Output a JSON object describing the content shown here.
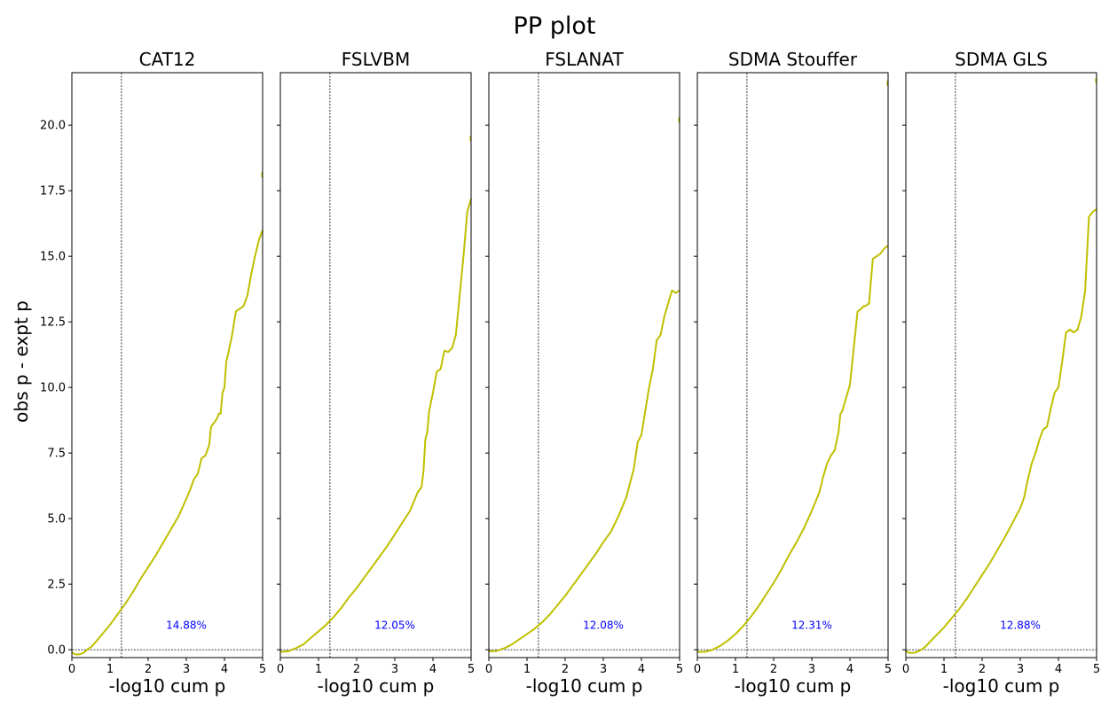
{
  "figure": {
    "title": "PP plot",
    "ylabel": "obs p - expt p",
    "line_color": "#bfbf00",
    "annotation_color": "#0000ff"
  },
  "chart_data": [
    {
      "type": "line",
      "title": "CAT12",
      "xlabel": "-log10 cum p",
      "xlim": [
        0,
        5
      ],
      "ylim": [
        -0.3,
        22
      ],
      "x_ticks": [
        "0",
        "1",
        "2",
        "3",
        "4",
        "5"
      ],
      "y_ticks": [
        "0.0",
        "2.5",
        "5.0",
        "7.5",
        "10.0",
        "12.5",
        "15.0",
        "17.5",
        "20.0"
      ],
      "vline_x": 1.3,
      "hline_y": 0,
      "annotation": {
        "text": "14.88%",
        "x": 3.0,
        "y": 0.8
      },
      "x": [
        0.0,
        0.1,
        0.2,
        0.3,
        0.4,
        0.5,
        0.6,
        0.8,
        1.0,
        1.2,
        1.4,
        1.6,
        1.8,
        2.0,
        2.2,
        2.4,
        2.6,
        2.8,
        3.0,
        3.1,
        3.2,
        3.3,
        3.4,
        3.5,
        3.6,
        3.65,
        3.7,
        3.75,
        3.8,
        3.85,
        3.9,
        3.95,
        4.0,
        4.05,
        4.1,
        4.2,
        4.3,
        4.4,
        4.5,
        4.6,
        4.7,
        4.8,
        4.9,
        5.0
      ],
      "y": [
        -0.1,
        -0.18,
        -0.18,
        -0.12,
        0.0,
        0.1,
        0.25,
        0.6,
        0.95,
        1.35,
        1.75,
        2.2,
        2.7,
        3.15,
        3.6,
        4.1,
        4.6,
        5.1,
        5.75,
        6.1,
        6.5,
        6.7,
        7.3,
        7.4,
        7.8,
        8.5,
        8.6,
        8.7,
        8.8,
        9.0,
        9.0,
        9.8,
        10.0,
        11.0,
        11.3,
        12.0,
        12.9,
        13.0,
        13.1,
        13.5,
        14.3,
        15.0,
        15.6,
        16.0
      ],
      "tail_point": {
        "x": 5.0,
        "y": 18.1
      }
    },
    {
      "type": "line",
      "title": "FSLVBM",
      "xlabel": "-log10 cum p",
      "xlim": [
        0,
        5
      ],
      "ylim": [
        -0.3,
        22
      ],
      "x_ticks": [
        "0",
        "1",
        "2",
        "3",
        "4",
        "5"
      ],
      "y_ticks": [
        "0.0",
        "2.5",
        "5.0",
        "7.5",
        "10.0",
        "12.5",
        "15.0",
        "17.5",
        "20.0"
      ],
      "vline_x": 1.3,
      "hline_y": 0,
      "annotation": {
        "text": "12.05%",
        "x": 3.0,
        "y": 0.8
      },
      "x": [
        0.0,
        0.2,
        0.4,
        0.6,
        0.8,
        1.0,
        1.2,
        1.4,
        1.6,
        1.8,
        2.0,
        2.2,
        2.4,
        2.6,
        2.8,
        3.0,
        3.2,
        3.4,
        3.6,
        3.7,
        3.75,
        3.8,
        3.85,
        3.9,
        4.0,
        4.1,
        4.2,
        4.3,
        4.4,
        4.5,
        4.6,
        4.7,
        4.8,
        4.9,
        5.0
      ],
      "y": [
        -0.08,
        -0.06,
        0.05,
        0.2,
        0.45,
        0.7,
        0.95,
        1.25,
        1.6,
        2.0,
        2.35,
        2.75,
        3.15,
        3.55,
        3.95,
        4.4,
        4.85,
        5.3,
        6.0,
        6.2,
        6.8,
        8.0,
        8.3,
        9.1,
        9.8,
        10.6,
        10.7,
        11.4,
        11.35,
        11.5,
        12.0,
        13.5,
        15.0,
        16.7,
        17.2
      ],
      "tail_point": {
        "x": 5.0,
        "y": 19.5
      }
    },
    {
      "type": "line",
      "title": "FSLANAT",
      "xlabel": "-log10 cum p",
      "xlim": [
        0,
        5
      ],
      "ylim": [
        -0.3,
        22
      ],
      "x_ticks": [
        "0",
        "1",
        "2",
        "3",
        "4",
        "5"
      ],
      "y_ticks": [
        "0.0",
        "2.5",
        "5.0",
        "7.5",
        "10.0",
        "12.5",
        "15.0",
        "17.5",
        "20.0"
      ],
      "vline_x": 1.3,
      "hline_y": 0,
      "annotation": {
        "text": "12.08%",
        "x": 3.0,
        "y": 0.8
      },
      "x": [
        0.0,
        0.2,
        0.4,
        0.6,
        0.8,
        1.0,
        1.2,
        1.4,
        1.6,
        1.8,
        2.0,
        2.2,
        2.4,
        2.6,
        2.8,
        3.0,
        3.2,
        3.4,
        3.6,
        3.8,
        3.9,
        4.0,
        4.1,
        4.2,
        4.3,
        4.4,
        4.5,
        4.6,
        4.7,
        4.8,
        4.9,
        5.0
      ],
      "y": [
        -0.06,
        -0.05,
        0.05,
        0.2,
        0.4,
        0.6,
        0.8,
        1.05,
        1.35,
        1.7,
        2.05,
        2.45,
        2.85,
        3.25,
        3.65,
        4.1,
        4.5,
        5.1,
        5.8,
        6.9,
        7.9,
        8.2,
        9.1,
        10.0,
        10.7,
        11.8,
        12.0,
        12.7,
        13.2,
        13.7,
        13.6,
        13.7
      ],
      "tail_point": {
        "x": 5.0,
        "y": 20.2
      }
    },
    {
      "type": "line",
      "title": "SDMA Stouffer",
      "xlabel": "-log10 cum p",
      "xlim": [
        0,
        5
      ],
      "ylim": [
        -0.3,
        22
      ],
      "x_ticks": [
        "0",
        "1",
        "2",
        "3",
        "4",
        "5"
      ],
      "y_ticks": [
        "0.0",
        "2.5",
        "5.0",
        "7.5",
        "10.0",
        "12.5",
        "15.0",
        "17.5",
        "20.0"
      ],
      "vline_x": 1.3,
      "hline_y": 0,
      "annotation": {
        "text": "12.31%",
        "x": 3.0,
        "y": 0.8
      },
      "x": [
        0.0,
        0.2,
        0.4,
        0.6,
        0.8,
        1.0,
        1.2,
        1.4,
        1.6,
        1.8,
        2.0,
        2.2,
        2.4,
        2.6,
        2.8,
        3.0,
        3.2,
        3.3,
        3.4,
        3.5,
        3.6,
        3.7,
        3.75,
        3.8,
        3.9,
        4.0,
        4.1,
        4.2,
        4.3,
        4.35,
        4.4,
        4.5,
        4.6,
        4.7,
        4.8,
        4.9,
        5.0
      ],
      "y": [
        -0.08,
        -0.08,
        0.0,
        0.15,
        0.35,
        0.6,
        0.9,
        1.25,
        1.65,
        2.1,
        2.55,
        3.05,
        3.6,
        4.1,
        4.65,
        5.3,
        6.0,
        6.6,
        7.1,
        7.4,
        7.6,
        8.3,
        9.0,
        9.1,
        9.6,
        10.1,
        11.5,
        12.9,
        13.0,
        13.1,
        13.1,
        13.2,
        14.9,
        15.0,
        15.1,
        15.3,
        15.4
      ],
      "tail_point": {
        "x": 5.0,
        "y": 21.6
      }
    },
    {
      "type": "line",
      "title": "SDMA GLS",
      "xlabel": "-log10 cum p",
      "xlim": [
        0,
        5
      ],
      "ylim": [
        -0.3,
        22
      ],
      "x_ticks": [
        "0",
        "1",
        "2",
        "3",
        "4",
        "5"
      ],
      "y_ticks": [
        "0.0",
        "2.5",
        "5.0",
        "7.5",
        "10.0",
        "12.5",
        "15.0",
        "17.5",
        "20.0"
      ],
      "vline_x": 1.3,
      "hline_y": 0,
      "annotation": {
        "text": "12.88%",
        "x": 3.0,
        "y": 0.8
      },
      "x": [
        0.0,
        0.1,
        0.2,
        0.3,
        0.4,
        0.5,
        0.6,
        0.8,
        1.0,
        1.2,
        1.4,
        1.6,
        1.8,
        2.0,
        2.2,
        2.4,
        2.6,
        2.8,
        3.0,
        3.1,
        3.2,
        3.3,
        3.4,
        3.5,
        3.6,
        3.7,
        3.8,
        3.9,
        4.0,
        4.1,
        4.2,
        4.3,
        4.4,
        4.5,
        4.6,
        4.7,
        4.8,
        4.9,
        5.0
      ],
      "y": [
        -0.05,
        -0.12,
        -0.12,
        -0.08,
        0.0,
        0.1,
        0.25,
        0.55,
        0.85,
        1.2,
        1.55,
        1.95,
        2.4,
        2.85,
        3.3,
        3.8,
        4.3,
        4.85,
        5.4,
        5.8,
        6.5,
        7.1,
        7.5,
        8.0,
        8.4,
        8.5,
        9.2,
        9.8,
        10.0,
        11.0,
        12.1,
        12.2,
        12.1,
        12.2,
        12.7,
        13.7,
        16.5,
        16.7,
        16.8
      ],
      "tail_point": {
        "x": 5.0,
        "y": 21.7
      }
    }
  ]
}
